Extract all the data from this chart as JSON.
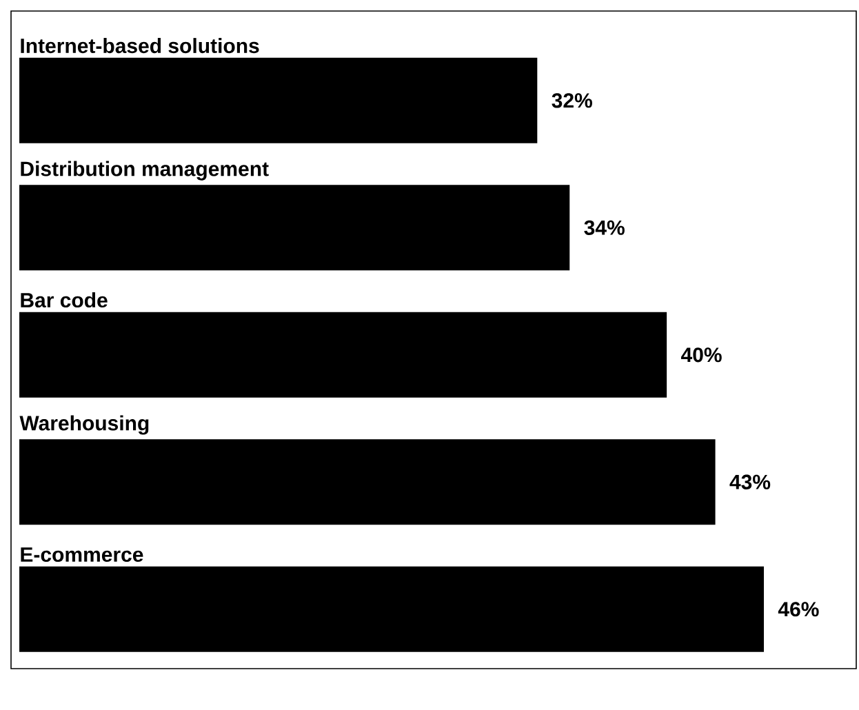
{
  "chart_data": {
    "type": "bar",
    "orientation": "horizontal",
    "categories": [
      "Internet-based solutions",
      "Distribution management",
      "Bar code",
      "Warehousing",
      "E-commerce"
    ],
    "values": [
      32,
      34,
      40,
      43,
      46
    ],
    "value_labels": [
      "32%",
      "34%",
      "40%",
      "43%",
      "46%"
    ],
    "color": "#000000"
  }
}
